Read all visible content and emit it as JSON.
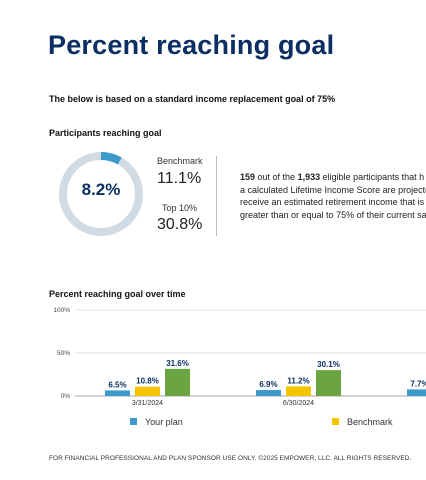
{
  "page": {
    "title": "Percent reaching goal",
    "subtitle": "The below is based on a standard income replacement goal of 75%",
    "footer": "FOR FINANCIAL PROFESSIONAL AND PLAN SPONSOR USE ONLY. ©2025 EMPOWER, LLC. ALL RIGHTS RESERVED."
  },
  "participants": {
    "label": "Participants reaching goal",
    "percent": "8.2%",
    "percent_value": 8.2,
    "benchmark_label": "Benchmark",
    "benchmark_value": "11.1%",
    "top10_label": "Top 10%",
    "top10_value": "30.8%",
    "desc": {
      "count": "159",
      "text1": " out of the ",
      "total": "1,933",
      "text2": " eligible participants that h",
      "line2": "a calculated Lifetime Income Score are projecte",
      "line3": "receive an estimated retirement income that is",
      "line4": "greater than or equal to 75% of their current sa"
    }
  },
  "colors": {
    "title": "#0b2e63",
    "donut_track": "#d0dbe3",
    "donut_fill": "#3b9ac9",
    "your_plan": "#3b9ac9",
    "benchmark": "#f5c400",
    "top10": "#6aa542"
  },
  "chart_label": "Percent reaching goal over time",
  "legend": {
    "your_plan": "Your plan",
    "benchmark": "Benchmark"
  },
  "chart_data": {
    "type": "bar",
    "categories": [
      "3/31/2024",
      "6/30/2024",
      ""
    ],
    "y_ticks": [
      "100%",
      "50%",
      "0%"
    ],
    "ylim": [
      0,
      100
    ],
    "series": [
      {
        "name": "Your plan",
        "color": "#3b9ac9",
        "values": [
          6.5,
          6.9,
          7.7
        ],
        "labels": [
          "6.5%",
          "6.9%",
          "7.7%"
        ]
      },
      {
        "name": "Benchmark",
        "color": "#f5c400",
        "values": [
          10.8,
          11.2,
          null
        ],
        "labels": [
          "10.8%",
          "11.2%",
          ""
        ]
      },
      {
        "color": "#6aa542",
        "values": [
          31.6,
          30.1,
          null
        ],
        "labels": [
          "31.6%",
          "30.1%",
          ""
        ]
      }
    ],
    "grid": true,
    "legend_position": "bottom"
  }
}
